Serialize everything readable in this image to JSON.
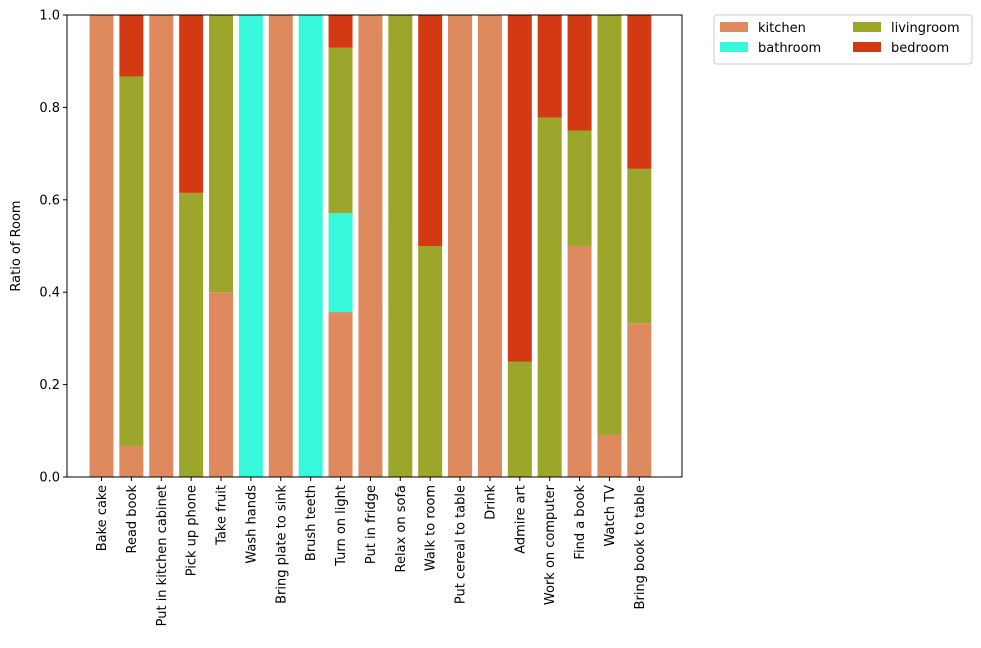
{
  "chart_data": {
    "type": "bar",
    "stacked": true,
    "title": "",
    "xlabel": "",
    "ylabel": "Ratio of Room",
    "ylim": [
      0,
      1
    ],
    "yticks": [
      "0.0",
      "0.2",
      "0.4",
      "0.6",
      "0.8",
      "1.0"
    ],
    "legend_position": "outside-top-right",
    "categories": [
      "Bake cake",
      "Read book",
      "Put in kitchen cabinet",
      "Pick up phone",
      "Take fruit",
      "Wash hands",
      "Bring plate to sink",
      "Brush teeth",
      "Turn on light",
      "Put in fridge",
      "Relax on sofa",
      "Walk to room",
      "Put cereal to table",
      "Drink",
      "Admire art",
      "Work on computer",
      "Find a book",
      "Watch TV",
      "Bring book to table"
    ],
    "series": [
      {
        "name": "kitchen",
        "color": "#de8a5e",
        "values": [
          1,
          0.067,
          1,
          0,
          0.4,
          0,
          1,
          0,
          0.357,
          1,
          0,
          0,
          1,
          1,
          0,
          0,
          0.5,
          0.091,
          0.333
        ]
      },
      {
        "name": "bathroom",
        "color": "#38f8dc",
        "values": [
          0,
          0,
          0,
          0,
          0,
          1,
          0,
          1,
          0.214,
          0,
          0,
          0,
          0,
          0,
          0,
          0,
          0,
          0,
          0
        ]
      },
      {
        "name": "livingroom",
        "color": "#9ba62a",
        "values": [
          0,
          0.8,
          0,
          0.615,
          0.6,
          0,
          0,
          0,
          0.358,
          0,
          1,
          0.5,
          0,
          0,
          0.25,
          0.778,
          0.25,
          0.909,
          0.334
        ]
      },
      {
        "name": "bedroom",
        "color": "#d33a14",
        "values": [
          0,
          0.133,
          0,
          0.385,
          0,
          0,
          0,
          0,
          0.071,
          0,
          0,
          0.5,
          0,
          0,
          0.75,
          0.222,
          0.25,
          0,
          0.333
        ]
      }
    ]
  }
}
